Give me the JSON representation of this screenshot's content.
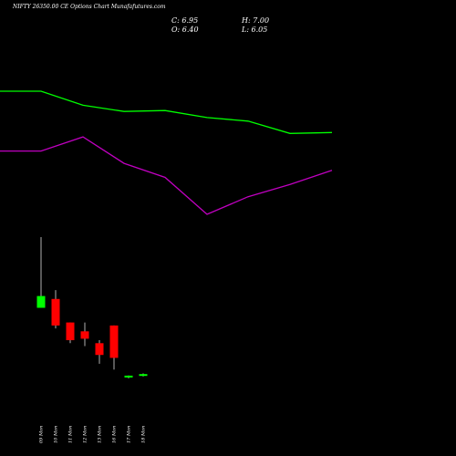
{
  "header": {
    "title": "NIFTY 26350.00  CE Options  Chart  Munafa",
    "watermark": "futures.com",
    "close_label": "C: 6.95",
    "high_label": "H: 7.00",
    "open_label": "O: 6.40",
    "low_label": "L: 6.05"
  },
  "colors": {
    "background": "#000000",
    "up": "#00ff00",
    "down": "#ff0000",
    "ma_short": "#00ff00",
    "ma_long": "#c000c0",
    "text": "#ffffff"
  },
  "chart_data": {
    "type": "candlestick",
    "title": "NIFTY 26350.00  CE Options  Chart  Munafa",
    "categories": [
      "09 Mon",
      "10 Mon",
      "11 Mon",
      "12 Mon",
      "13 Mon",
      "16 Mon",
      "17 Mon",
      "18 Mon"
    ],
    "candles": [
      {
        "open": 30.0,
        "high": 54.0,
        "low": 30.0,
        "close": 34.0
      },
      {
        "open": 33.0,
        "high": 36.0,
        "low": 23.0,
        "close": 24.0
      },
      {
        "open": 25.0,
        "high": 25.0,
        "low": 18.0,
        "close": 19.0
      },
      {
        "open": 22.0,
        "high": 25.0,
        "low": 17.0,
        "close": 19.5
      },
      {
        "open": 18.0,
        "high": 19.0,
        "low": 11.0,
        "close": 14.0
      },
      {
        "open": 24.0,
        "high": 24.0,
        "low": 9.0,
        "close": 13.0
      },
      {
        "open": 6.4,
        "high": 7.0,
        "low": 6.05,
        "close": 6.95
      },
      {
        "open": 6.9,
        "high": 7.7,
        "low": 6.7,
        "close": 7.5
      }
    ],
    "ma_short": [
      120.0,
      120.0,
      120.0,
      112.0,
      108.5,
      109.0,
      105.0,
      103.0,
      96.0,
      96.5
    ],
    "ma_long": [
      86.0,
      86.0,
      86.0,
      94.0,
      79.0,
      71.0,
      50.0,
      60.0,
      67.0,
      75.0
    ]
  }
}
